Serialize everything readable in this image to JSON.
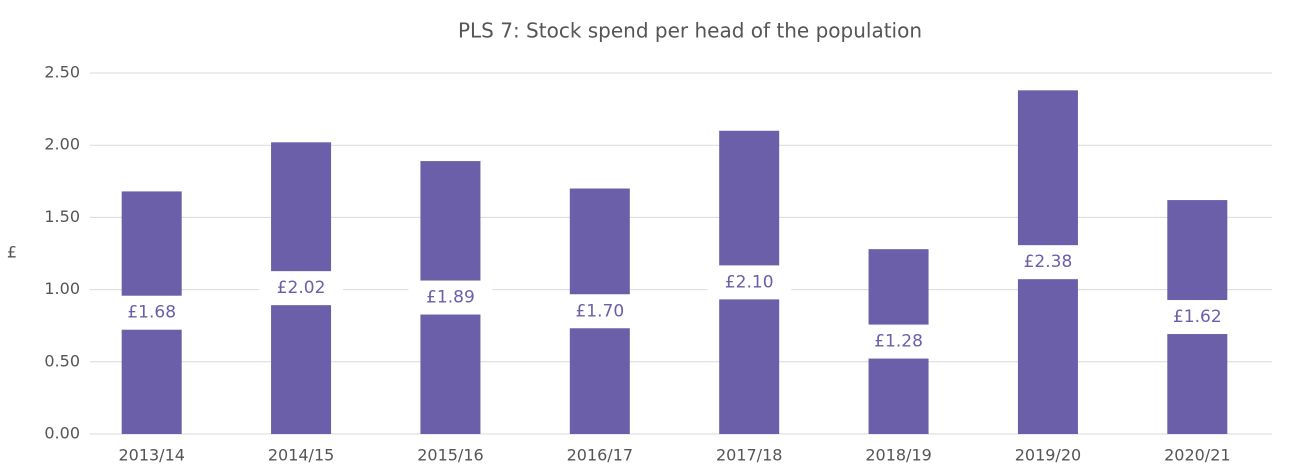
{
  "chart_data": {
    "type": "bar",
    "title": "PLS 7: Stock spend per head of the population",
    "y_label": "£",
    "categories": [
      "2013/14",
      "2014/15",
      "2015/16",
      "2016/17",
      "2017/18",
      "2018/19",
      "2019/20",
      "2020/21"
    ],
    "values": [
      1.68,
      2.02,
      1.89,
      1.7,
      2.1,
      1.28,
      2.38,
      1.62
    ],
    "value_labels": [
      "£1.68",
      "£2.02",
      "£1.89",
      "£1.70",
      "£2.10",
      "£1.28",
      "£2.38",
      "£1.62"
    ],
    "color": "#6a5fa8",
    "ylim": [
      0,
      2.5
    ],
    "yticks": [
      {
        "value": 0,
        "label": "0.00"
      },
      {
        "value": 0.5,
        "label": "0.50"
      },
      {
        "value": 1,
        "label": "1.00"
      },
      {
        "value": 1.5,
        "label": "1.50"
      },
      {
        "value": 2,
        "label": "2.00"
      },
      {
        "value": 2.5,
        "label": "2.50"
      }
    ],
    "grid": true
  }
}
